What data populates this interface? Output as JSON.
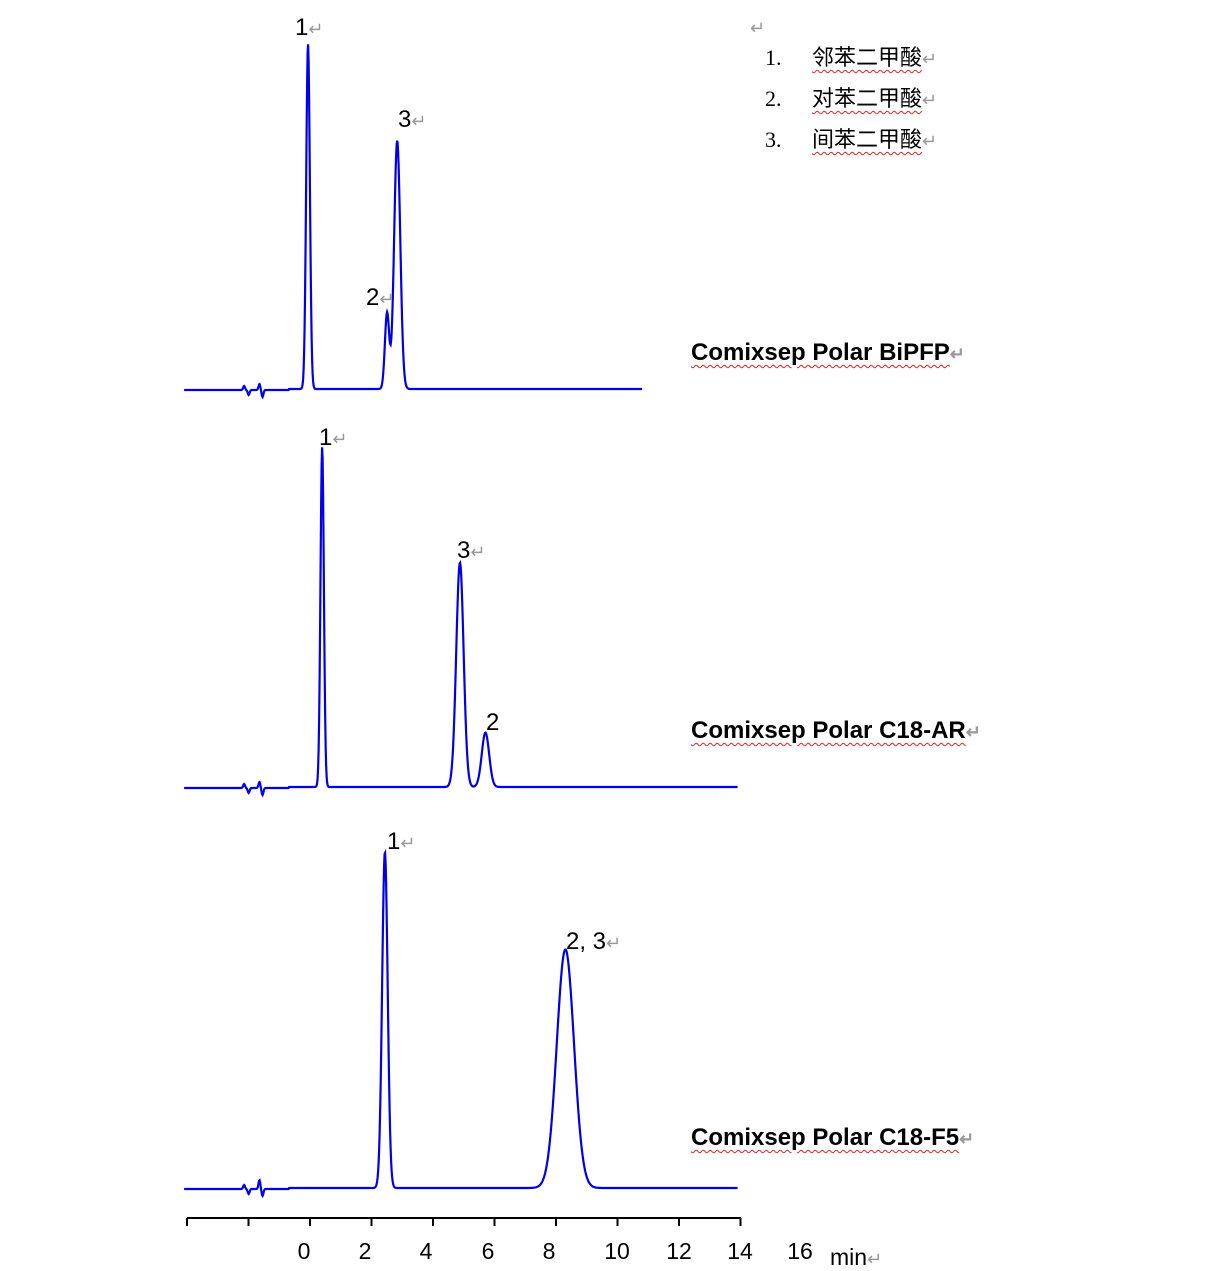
{
  "return_mark": "↵",
  "legend": {
    "items": [
      {
        "num": "1.",
        "name": "邻苯二甲酸"
      },
      {
        "num": "2.",
        "name": "对苯二甲酸"
      },
      {
        "num": "3.",
        "name": "间苯二甲酸"
      }
    ]
  },
  "chart_data": {
    "type": "line",
    "xlabel": "min",
    "x_ticks": [
      "0",
      "2",
      "4",
      "6",
      "8",
      "10",
      "12",
      "14",
      "16"
    ],
    "xlim": [
      -4,
      14
    ],
    "line_color": "#0000ee",
    "series": [
      {
        "name": "Comixsep Polar BiPFP",
        "x_range": [
          -3.9,
          11.0
        ],
        "peaks": [
          {
            "label": "1",
            "rt": 0.13,
            "height": 100,
            "width": 0.06
          },
          {
            "label": "2",
            "rt": 2.7,
            "height": 22,
            "width": 0.07
          },
          {
            "label": "3",
            "rt": 3.03,
            "height": 72,
            "width": 0.1
          }
        ]
      },
      {
        "name": "Comixsep Polar C18-AR",
        "x_range": [
          -3.9,
          14.1
        ],
        "peaks": [
          {
            "label": "1",
            "rt": 0.59,
            "height": 100,
            "width": 0.055
          },
          {
            "label": "3",
            "rt": 5.07,
            "height": 66,
            "width": 0.12
          },
          {
            "label": "2",
            "rt": 5.9,
            "height": 16,
            "width": 0.12
          }
        ]
      },
      {
        "name": "Comixsep Polar C18-F5",
        "x_range": [
          -3.9,
          14.1
        ],
        "peaks": [
          {
            "label": "1",
            "rt": 2.63,
            "height": 100,
            "width": 0.09
          },
          {
            "label": "2, 3",
            "rt": 8.5,
            "height": 71,
            "width": 0.28
          }
        ]
      }
    ]
  }
}
